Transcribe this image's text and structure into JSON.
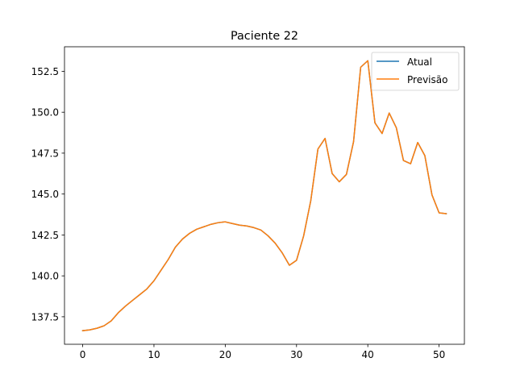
{
  "chart_data": {
    "type": "line",
    "title": "Paciente 22",
    "xlabel": "",
    "ylabel": "",
    "xlim": [
      -2.55,
      53.55
    ],
    "ylim": [
      135.82,
      154.0
    ],
    "xticks": [
      0,
      10,
      20,
      30,
      40,
      50
    ],
    "xtick_labels": [
      "0",
      "10",
      "20",
      "30",
      "40",
      "50"
    ],
    "yticks": [
      137.5,
      140.0,
      142.5,
      145.0,
      147.5,
      150.0,
      152.5
    ],
    "ytick_labels": [
      "137.5",
      "140.0",
      "142.5",
      "145.0",
      "147.5",
      "150.0",
      "152.5"
    ],
    "grid": false,
    "legend": "top-right",
    "x": [
      0,
      1,
      2,
      3,
      4,
      5,
      6,
      7,
      8,
      9,
      10,
      11,
      12,
      13,
      14,
      15,
      16,
      17,
      18,
      19,
      20,
      21,
      22,
      23,
      24,
      25,
      26,
      27,
      28,
      29,
      30,
      31,
      32,
      33,
      34,
      35,
      36,
      37,
      38,
      39,
      40,
      41,
      42,
      43,
      44,
      45,
      46,
      47,
      48,
      49,
      50,
      51
    ],
    "series": [
      {
        "name": "Atual",
        "color": "#1f77b4",
        "values": [
          136.65,
          136.7,
          136.8,
          136.95,
          137.25,
          137.75,
          138.15,
          138.5,
          138.85,
          139.2,
          139.7,
          140.35,
          141.0,
          141.75,
          142.25,
          142.6,
          142.85,
          143.0,
          143.15,
          143.25,
          143.3,
          143.2,
          143.1,
          143.05,
          142.95,
          142.8,
          142.45,
          142.0,
          141.4,
          140.65,
          140.95,
          142.45,
          144.6,
          147.75,
          148.4,
          146.25,
          145.75,
          146.2,
          148.2,
          152.75,
          153.15,
          149.35,
          148.7,
          149.95,
          149.05,
          147.05,
          146.85,
          148.15,
          147.35,
          144.95,
          143.85,
          143.8
        ]
      },
      {
        "name": "Previsão",
        "color": "#ff7f0e",
        "values": [
          136.65,
          136.7,
          136.8,
          136.95,
          137.25,
          137.75,
          138.15,
          138.5,
          138.85,
          139.2,
          139.7,
          140.35,
          141.0,
          141.75,
          142.25,
          142.6,
          142.85,
          143.0,
          143.15,
          143.25,
          143.3,
          143.2,
          143.1,
          143.05,
          142.95,
          142.8,
          142.45,
          142.0,
          141.4,
          140.65,
          140.95,
          142.45,
          144.6,
          147.75,
          148.4,
          146.25,
          145.75,
          146.2,
          148.2,
          152.75,
          153.15,
          149.35,
          148.7,
          149.95,
          149.05,
          147.05,
          146.85,
          148.15,
          147.35,
          144.95,
          143.85,
          143.8
        ]
      }
    ]
  }
}
